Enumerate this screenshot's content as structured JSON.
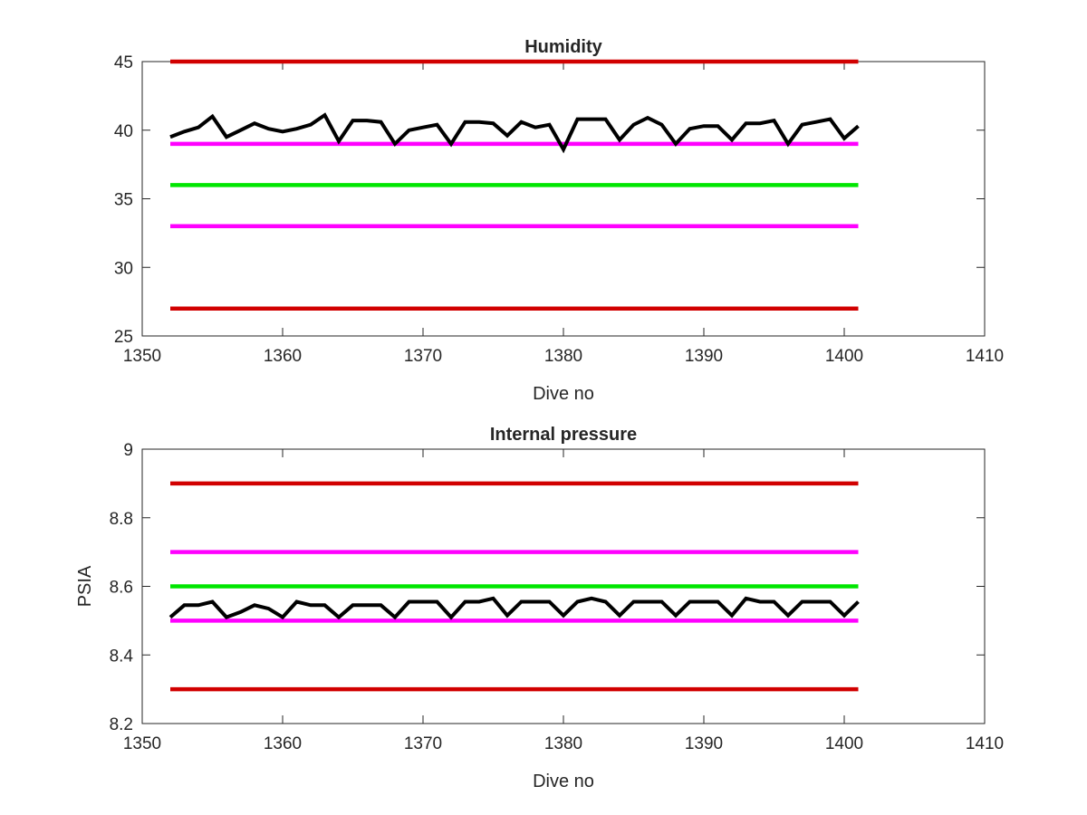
{
  "colors": {
    "limit_red": "#d10000",
    "warning_magenta": "#ff00ff",
    "target_green": "#00e600",
    "data_black": "#000000",
    "axes": "#262626"
  },
  "chart_data": [
    {
      "type": "line",
      "title": "Humidity",
      "xlabel": "Dive no",
      "ylabel": "",
      "xlim": [
        1350,
        1410
      ],
      "ylim": [
        25,
        45
      ],
      "xticks": [
        1350,
        1360,
        1370,
        1380,
        1390,
        1400,
        1410
      ],
      "yticks": [
        25,
        30,
        35,
        40,
        45
      ],
      "grid": false,
      "reference_lines": [
        {
          "y": 45,
          "x_range": [
            1352,
            1401
          ],
          "color": "limit_red"
        },
        {
          "y": 39,
          "x_range": [
            1352,
            1401
          ],
          "color": "warning_magenta"
        },
        {
          "y": 36,
          "x_range": [
            1352,
            1401
          ],
          "color": "target_green"
        },
        {
          "y": 33,
          "x_range": [
            1352,
            1401
          ],
          "color": "warning_magenta"
        },
        {
          "y": 27,
          "x_range": [
            1352,
            1401
          ],
          "color": "limit_red"
        }
      ],
      "series": [
        {
          "color": "data_black",
          "x": [
            1352,
            1353,
            1354,
            1355,
            1356,
            1357,
            1358,
            1359,
            1360,
            1361,
            1362,
            1363,
            1364,
            1365,
            1366,
            1367,
            1368,
            1369,
            1370,
            1371,
            1372,
            1373,
            1374,
            1375,
            1376,
            1377,
            1378,
            1379,
            1380,
            1381,
            1382,
            1383,
            1384,
            1385,
            1386,
            1387,
            1388,
            1389,
            1390,
            1391,
            1392,
            1393,
            1394,
            1395,
            1396,
            1397,
            1398,
            1399,
            1400,
            1401
          ],
          "y": [
            39.5,
            39.9,
            40.2,
            41.0,
            39.5,
            40.0,
            40.5,
            40.1,
            39.9,
            40.1,
            40.4,
            41.1,
            39.2,
            40.7,
            40.7,
            40.6,
            39.0,
            40.0,
            40.2,
            40.4,
            39.0,
            40.6,
            40.6,
            40.5,
            39.6,
            40.6,
            40.2,
            40.4,
            38.6,
            40.8,
            40.8,
            40.8,
            39.3,
            40.4,
            40.9,
            40.4,
            39.0,
            40.1,
            40.3,
            40.3,
            39.3,
            40.5,
            40.5,
            40.7,
            39.0,
            40.4,
            40.6,
            40.8,
            39.4,
            40.3
          ]
        }
      ]
    },
    {
      "type": "line",
      "title": "Internal pressure",
      "xlabel": "Dive no",
      "ylabel": "PSIA",
      "xlim": [
        1350,
        1410
      ],
      "ylim": [
        8.2,
        9.0
      ],
      "xticks": [
        1350,
        1360,
        1370,
        1380,
        1390,
        1400,
        1410
      ],
      "yticks": [
        "8.2",
        "8.4",
        "8.6",
        "8.8",
        "9"
      ],
      "grid": false,
      "reference_lines": [
        {
          "y": 8.9,
          "x_range": [
            1352,
            1401
          ],
          "color": "limit_red"
        },
        {
          "y": 8.7,
          "x_range": [
            1352,
            1401
          ],
          "color": "warning_magenta"
        },
        {
          "y": 8.6,
          "x_range": [
            1352,
            1401
          ],
          "color": "target_green"
        },
        {
          "y": 8.5,
          "x_range": [
            1352,
            1401
          ],
          "color": "warning_magenta"
        },
        {
          "y": 8.3,
          "x_range": [
            1352,
            1401
          ],
          "color": "limit_red"
        }
      ],
      "series": [
        {
          "color": "data_black",
          "x": [
            1352,
            1353,
            1354,
            1355,
            1356,
            1357,
            1358,
            1359,
            1360,
            1361,
            1362,
            1363,
            1364,
            1365,
            1366,
            1367,
            1368,
            1369,
            1370,
            1371,
            1372,
            1373,
            1374,
            1375,
            1376,
            1377,
            1378,
            1379,
            1380,
            1381,
            1382,
            1383,
            1384,
            1385,
            1386,
            1387,
            1388,
            1389,
            1390,
            1391,
            1392,
            1393,
            1394,
            1395,
            1396,
            1397,
            1398,
            1399,
            1400,
            1401
          ],
          "y": [
            8.51,
            8.545,
            8.545,
            8.555,
            8.51,
            8.525,
            8.545,
            8.535,
            8.51,
            8.555,
            8.545,
            8.545,
            8.51,
            8.545,
            8.545,
            8.545,
            8.51,
            8.555,
            8.555,
            8.555,
            8.51,
            8.555,
            8.555,
            8.565,
            8.515,
            8.555,
            8.555,
            8.555,
            8.515,
            8.555,
            8.565,
            8.555,
            8.515,
            8.555,
            8.555,
            8.555,
            8.515,
            8.555,
            8.555,
            8.555,
            8.515,
            8.565,
            8.555,
            8.555,
            8.515,
            8.555,
            8.555,
            8.555,
            8.515,
            8.555
          ]
        }
      ]
    }
  ]
}
